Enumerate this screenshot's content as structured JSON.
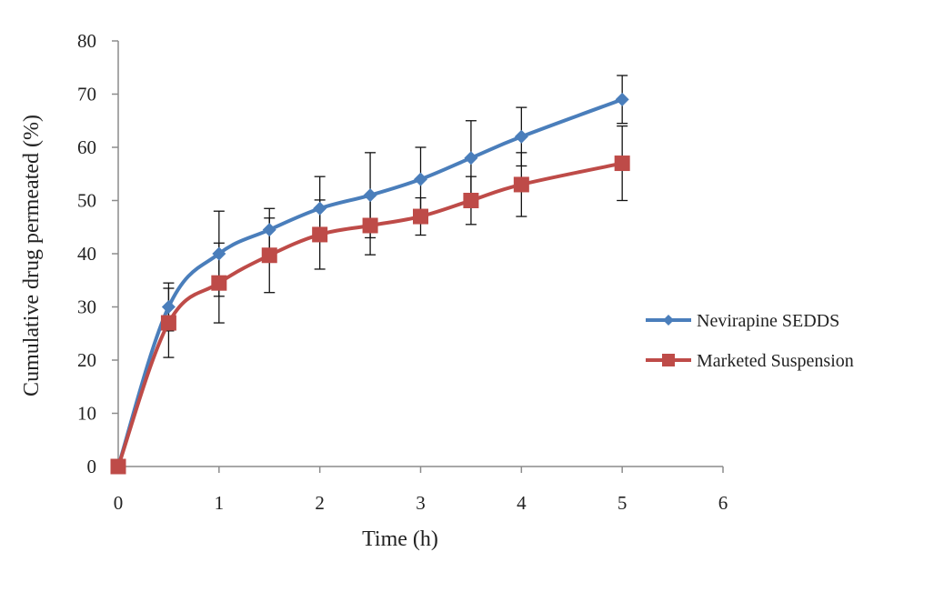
{
  "chart_data": {
    "type": "line",
    "title": "",
    "xlabel": "Time (h)",
    "ylabel": "Cumulative drug permeated (%)",
    "xlim": [
      0,
      6
    ],
    "ylim": [
      0,
      80
    ],
    "x_ticks": [
      0,
      1,
      2,
      3,
      4,
      5,
      6
    ],
    "y_ticks": [
      0,
      10,
      20,
      30,
      40,
      50,
      60,
      70,
      80
    ],
    "grid": false,
    "legend_position": "right",
    "series": [
      {
        "name": "Nevirapine SEDDS",
        "color": "#4a7ebb",
        "marker": "diamond",
        "x": [
          0,
          0.5,
          1,
          1.5,
          2,
          2.5,
          3,
          3.5,
          4,
          5
        ],
        "y": [
          0,
          30,
          40,
          44.5,
          48.5,
          51,
          54,
          58,
          62,
          69
        ],
        "error": [
          0,
          4.5,
          8,
          4,
          6,
          8,
          6,
          7,
          5.5,
          4.5
        ]
      },
      {
        "name": "Marketed Suspension",
        "color": "#be4b48",
        "marker": "square",
        "x": [
          0,
          0.5,
          1,
          1.5,
          2,
          2.5,
          3,
          3.5,
          4,
          5
        ],
        "y": [
          0,
          27,
          34.5,
          39.7,
          43.6,
          45.3,
          47,
          50,
          53,
          57
        ],
        "error": [
          0,
          6.5,
          7.5,
          7,
          6.5,
          5.5,
          3.5,
          4.5,
          6,
          7
        ]
      }
    ]
  }
}
